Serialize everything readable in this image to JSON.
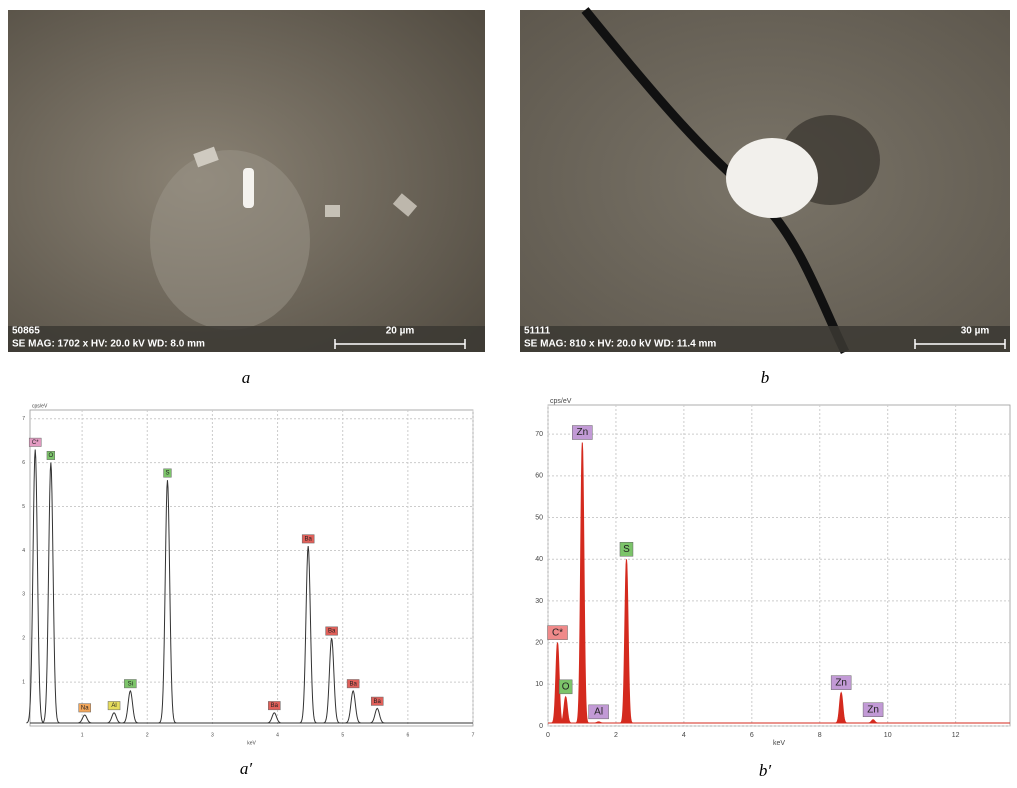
{
  "images": [
    {
      "id": "50865",
      "info": "SE  MAG: 1702 x  HV: 20.0 kV  WD: 8.0 mm",
      "scale": "20 µm",
      "caption": "a"
    },
    {
      "id": "51111",
      "info": "SE  MAG: 810 x  HV: 20.0 kV  WD: 11.4 mm",
      "scale": "30 µm",
      "caption": "b"
    }
  ],
  "chart_data": [
    {
      "type": "spectrum",
      "caption": "a′",
      "x_label": "keV",
      "y_label": "cps/eV",
      "color": "#333333",
      "fill": false,
      "xlim": [
        0.2,
        7.0
      ],
      "ylim": [
        0,
        7.2
      ],
      "xticks": [
        1,
        2,
        3,
        4,
        5,
        6,
        7
      ],
      "yticks": [
        1,
        2,
        3,
        4,
        5,
        6,
        7
      ],
      "grid": true,
      "peaks": [
        {
          "label": "C*",
          "x": 0.28,
          "y": 6.3,
          "color": "#e39bc2"
        },
        {
          "label": "O",
          "x": 0.52,
          "y": 6.0,
          "color": "#7cc46a"
        },
        {
          "label": "Na",
          "x": 1.04,
          "y": 0.25,
          "color": "#f2a65a"
        },
        {
          "label": "Al",
          "x": 1.49,
          "y": 0.3,
          "color": "#e6dc5c"
        },
        {
          "label": "Si",
          "x": 1.74,
          "y": 0.8,
          "color": "#7cc46a"
        },
        {
          "label": "S",
          "x": 2.31,
          "y": 5.6,
          "color": "#7cc46a"
        },
        {
          "label": "Ba",
          "x": 3.95,
          "y": 0.3,
          "color": "#e0605a"
        },
        {
          "label": "Ba",
          "x": 4.47,
          "y": 4.1,
          "color": "#e0605a"
        },
        {
          "label": "Ba",
          "x": 4.83,
          "y": 2.0,
          "color": "#e0605a"
        },
        {
          "label": "Ba",
          "x": 5.16,
          "y": 0.8,
          "color": "#e0605a"
        },
        {
          "label": "Ba",
          "x": 5.53,
          "y": 0.4,
          "color": "#e0605a"
        }
      ]
    },
    {
      "type": "spectrum",
      "caption": "b′",
      "x_label": "keV",
      "y_label": "cps/eV",
      "color": "#d42a1e",
      "fill": true,
      "xlim": [
        0,
        13.6
      ],
      "ylim": [
        0,
        77
      ],
      "xticks": [
        0,
        2,
        4,
        6,
        8,
        10,
        12
      ],
      "yticks": [
        0,
        10,
        20,
        30,
        40,
        50,
        60,
        70
      ],
      "grid": true,
      "peaks": [
        {
          "label": "C*",
          "x": 0.28,
          "y": 20,
          "color": "#f08a8a"
        },
        {
          "label": "O",
          "x": 0.52,
          "y": 7,
          "color": "#7cc46a"
        },
        {
          "label": "Zn",
          "x": 1.01,
          "y": 68,
          "color": "#c29ad6"
        },
        {
          "label": "Al",
          "x": 1.49,
          "y": 1,
          "color": "#c29ad6"
        },
        {
          "label": "S",
          "x": 2.31,
          "y": 40,
          "color": "#7cc46a"
        },
        {
          "label": "Zn",
          "x": 8.63,
          "y": 8,
          "color": "#c29ad6"
        },
        {
          "label": "Zn",
          "x": 9.57,
          "y": 1.5,
          "color": "#c29ad6"
        }
      ]
    }
  ]
}
